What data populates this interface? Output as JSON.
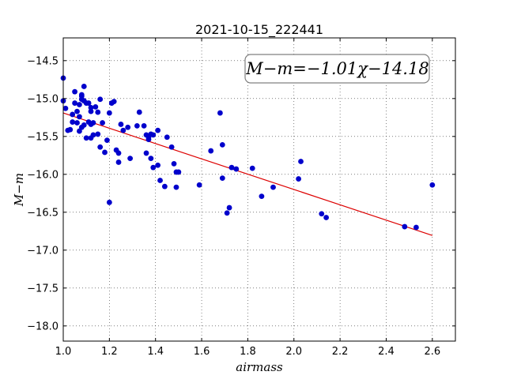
{
  "chart_data": {
    "type": "scatter",
    "title": "2021-10-15_222441",
    "xlabel": "airmass",
    "ylabel": "M−m",
    "xlim": [
      1.0,
      2.7
    ],
    "ylim": [
      -18.2,
      -14.2
    ],
    "y_inverted": true,
    "grid": true,
    "xticks": [
      1.0,
      1.2,
      1.4,
      1.6,
      1.8,
      2.0,
      2.2,
      2.4,
      2.6
    ],
    "xtick_labels": [
      "1.0",
      "1.2",
      "1.4",
      "1.6",
      "1.8",
      "2.0",
      "2.2",
      "2.4",
      "2.6"
    ],
    "yticks": [
      -14.5,
      -15.0,
      -15.5,
      -16.0,
      -16.5,
      -17.0,
      -17.5,
      -18.0
    ],
    "ytick_labels": [
      "−14.5",
      "−15.0",
      "−15.5",
      "−16.0",
      "−16.5",
      "−17.0",
      "−17.5",
      "−18.0"
    ],
    "annotation": "M−m=−1.01χ−14.18",
    "annotation_position": "top-right",
    "fit_line": {
      "slope": -1.01,
      "intercept": -14.18,
      "x_range": [
        1.0,
        2.6
      ],
      "color": "#dd0000"
    },
    "marker_color": "#0000cc",
    "points": [
      [
        1.0,
        -14.73
      ],
      [
        1.0,
        -15.03
      ],
      [
        1.01,
        -15.13
      ],
      [
        1.02,
        -15.42
      ],
      [
        1.03,
        -15.41
      ],
      [
        1.04,
        -15.31
      ],
      [
        1.04,
        -15.21
      ],
      [
        1.05,
        -15.06
      ],
      [
        1.05,
        -14.91
      ],
      [
        1.06,
        -15.32
      ],
      [
        1.06,
        -15.17
      ],
      [
        1.07,
        -15.24
      ],
      [
        1.07,
        -15.08
      ],
      [
        1.07,
        -15.43
      ],
      [
        1.08,
        -14.95
      ],
      [
        1.08,
        -14.97
      ],
      [
        1.08,
        -15.01
      ],
      [
        1.08,
        -15.38
      ],
      [
        1.09,
        -15.35
      ],
      [
        1.09,
        -14.84
      ],
      [
        1.09,
        -15.03
      ],
      [
        1.1,
        -15.06
      ],
      [
        1.1,
        -15.52
      ],
      [
        1.11,
        -15.06
      ],
      [
        1.11,
        -15.31
      ],
      [
        1.12,
        -15.12
      ],
      [
        1.12,
        -15.17
      ],
      [
        1.12,
        -15.34
      ],
      [
        1.12,
        -15.52
      ],
      [
        1.13,
        -15.48
      ],
      [
        1.13,
        -15.32
      ],
      [
        1.14,
        -15.11
      ],
      [
        1.15,
        -15.47
      ],
      [
        1.15,
        -15.18
      ],
      [
        1.16,
        -15.01
      ],
      [
        1.16,
        -15.64
      ],
      [
        1.17,
        -15.32
      ],
      [
        1.18,
        -15.71
      ],
      [
        1.19,
        -15.55
      ],
      [
        1.2,
        -16.37
      ],
      [
        1.2,
        -15.19
      ],
      [
        1.21,
        -15.06
      ],
      [
        1.22,
        -15.04
      ],
      [
        1.23,
        -15.68
      ],
      [
        1.24,
        -15.84
      ],
      [
        1.24,
        -15.72
      ],
      [
        1.25,
        -15.34
      ],
      [
        1.26,
        -15.42
      ],
      [
        1.28,
        -15.38
      ],
      [
        1.29,
        -15.79
      ],
      [
        1.32,
        -15.36
      ],
      [
        1.33,
        -15.18
      ],
      [
        1.35,
        -15.36
      ],
      [
        1.36,
        -15.72
      ],
      [
        1.36,
        -15.48
      ],
      [
        1.37,
        -15.51
      ],
      [
        1.37,
        -15.54
      ],
      [
        1.38,
        -15.47
      ],
      [
        1.38,
        -15.79
      ],
      [
        1.39,
        -15.91
      ],
      [
        1.39,
        -15.48
      ],
      [
        1.41,
        -15.88
      ],
      [
        1.41,
        -15.42
      ],
      [
        1.42,
        -16.08
      ],
      [
        1.44,
        -16.16
      ],
      [
        1.45,
        -15.51
      ],
      [
        1.47,
        -15.64
      ],
      [
        1.48,
        -15.86
      ],
      [
        1.49,
        -15.97
      ],
      [
        1.49,
        -16.17
      ],
      [
        1.5,
        -15.97
      ],
      [
        1.59,
        -16.14
      ],
      [
        1.64,
        -15.69
      ],
      [
        1.68,
        -15.19
      ],
      [
        1.69,
        -15.61
      ],
      [
        1.69,
        -16.05
      ],
      [
        1.71,
        -16.51
      ],
      [
        1.72,
        -16.44
      ],
      [
        1.73,
        -15.91
      ],
      [
        1.75,
        -15.93
      ],
      [
        1.82,
        -15.92
      ],
      [
        1.86,
        -16.29
      ],
      [
        1.91,
        -16.17
      ],
      [
        2.02,
        -16.06
      ],
      [
        2.03,
        -15.83
      ],
      [
        2.12,
        -16.52
      ],
      [
        2.14,
        -16.57
      ],
      [
        2.48,
        -16.69
      ],
      [
        2.53,
        -16.7
      ],
      [
        2.6,
        -16.14
      ]
    ]
  }
}
